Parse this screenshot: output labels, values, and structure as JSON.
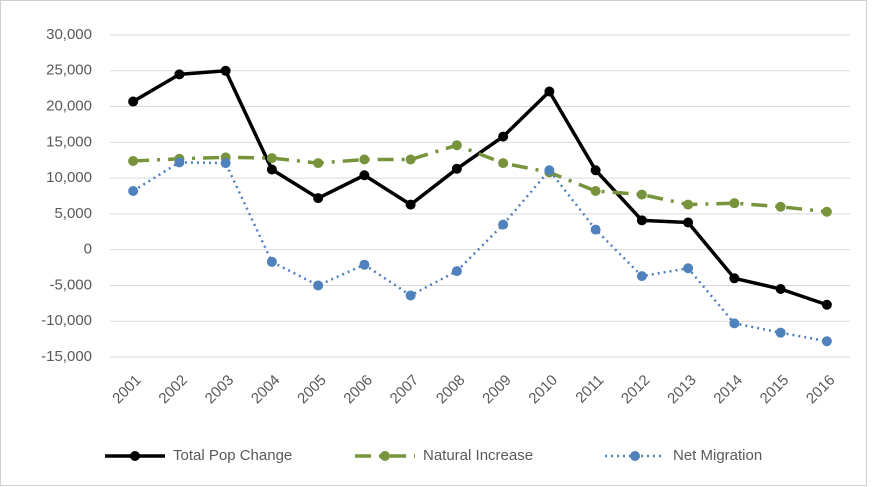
{
  "chart_data": {
    "type": "line",
    "categories": [
      "2001",
      "2002",
      "2003",
      "2004",
      "2005",
      "2006",
      "2007",
      "2008",
      "2009",
      "2010",
      "2011",
      "2012",
      "2013",
      "2014",
      "2015",
      "2016"
    ],
    "series": [
      {
        "name": "Total Pop Change",
        "color": "#000000",
        "values": [
          20700,
          24500,
          25000,
          11200,
          7200,
          10400,
          6300,
          11300,
          15800,
          22100,
          11100,
          4100,
          3800,
          -4000,
          -5500,
          -7700
        ]
      },
      {
        "name": "Natural Increase",
        "color": "#77933c",
        "values": [
          12400,
          12700,
          12900,
          12800,
          12100,
          12600,
          12600,
          14600,
          12100,
          10800,
          8200,
          7700,
          6300,
          6500,
          6000,
          5300
        ]
      },
      {
        "name": "Net Migration",
        "color": "#4f81bd",
        "values": [
          8200,
          12200,
          12100,
          -1700,
          -5000,
          -2100,
          -6400,
          -3000,
          3500,
          11100,
          2800,
          -3700,
          -2600,
          -10300,
          -11600,
          -12800
        ]
      }
    ],
    "ylim": [
      -15000,
      30000
    ],
    "yticks": [
      {
        "value": -15000,
        "label": "-15,000"
      },
      {
        "value": -10000,
        "label": "-10,000"
      },
      {
        "value": -5000,
        "label": "-5,000"
      },
      0,
      {
        "value": 5000,
        "label": "5,000"
      },
      {
        "value": 10000,
        "label": "10,000"
      },
      {
        "value": 15000,
        "label": "15,000"
      },
      {
        "value": 20000,
        "label": "20,000"
      },
      {
        "value": 25000,
        "label": "25,000"
      },
      {
        "value": 30000,
        "label": "30,000"
      }
    ],
    "grid": true,
    "legend": "bottom"
  }
}
